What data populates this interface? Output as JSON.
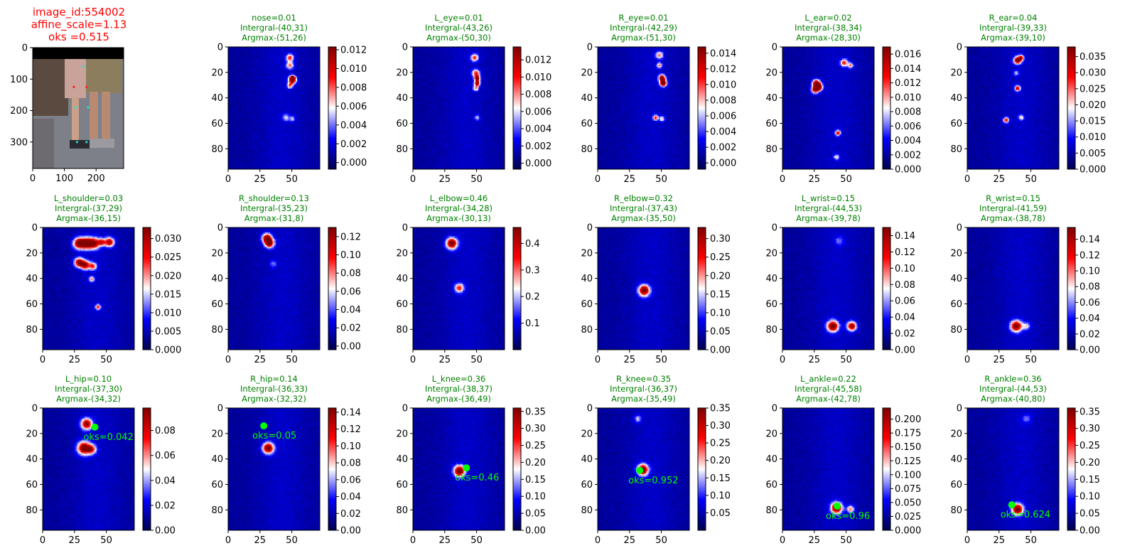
{
  "chart_data": {
    "type": "heatmap",
    "figure": {
      "image_panel": {
        "title": [
          "image_id:554002",
          "affine_scale=1.13",
          "oks =0.515"
        ],
        "title_color": "#ff0000",
        "xlim": [
          0,
          287
        ],
        "ylim": [
          0,
          384
        ],
        "xticks": [
          0,
          100,
          200
        ],
        "yticks": [
          0,
          100,
          200,
          300
        ],
        "keypoints_red": [
          [
            130,
            125
          ],
          [
            170,
            125
          ]
        ],
        "keypoints_cyan": [
          [
            160,
            60
          ],
          [
            135,
            190
          ],
          [
            175,
            190
          ],
          [
            140,
            300
          ],
          [
            170,
            300
          ]
        ]
      },
      "heatmap_xlim": [
        0,
        72
      ],
      "heatmap_ylim": [
        0,
        96
      ],
      "heatmap_xticks": [
        0,
        25,
        50
      ],
      "heatmap_yticks": [
        0,
        20,
        40,
        60,
        80
      ],
      "colormap": "seismic",
      "colors": {
        "title": "#008000",
        "gt_marker": "#00ff00",
        "image_title": "#ff0000"
      },
      "panels": [
        {
          "title": [
            "nose=0.01",
            "Intergral-(40,31)",
            "Argmax-(51,26)"
          ],
          "cbar_ticks": [
            "0.000",
            "0.002",
            "0.004",
            "0.006",
            "0.008",
            "0.010",
            "0.012"
          ],
          "vmin": -0.0007,
          "vmax": 0.0123,
          "blobs": [
            [
              48,
              8,
              2,
              0.6
            ],
            [
              48,
              14,
              2,
              0.5
            ],
            [
              50,
              24,
              1.5,
              0.9
            ],
            [
              50,
              26,
              2,
              0.8
            ],
            [
              48,
              30,
              1.5,
              0.5
            ],
            [
              45,
              55,
              2,
              0.3
            ],
            [
              50,
              56,
              1.5,
              0.3
            ]
          ]
        },
        {
          "title": [
            "L_eye=0.01",
            "Intergral-(43,26)",
            "Argmax-(50,30)"
          ],
          "cbar_ticks": [
            "0.000",
            "0.002",
            "0.004",
            "0.006",
            "0.008",
            "0.010",
            "0.012"
          ],
          "vmin": -0.0007,
          "vmax": 0.0135,
          "blobs": [
            [
              48,
              8,
              2,
              0.6
            ],
            [
              49,
              20,
              2,
              0.6
            ],
            [
              50,
              24,
              1.5,
              0.95
            ],
            [
              50,
              28,
              1.5,
              0.9
            ],
            [
              49,
              32,
              1.5,
              0.5
            ],
            [
              50,
              55,
              1.5,
              0.3
            ]
          ]
        },
        {
          "title": [
            "R_eye=0.01",
            "Intergral-(42,29)",
            "Argmax-(51,30)"
          ],
          "cbar_ticks": [
            "0.000",
            "0.002",
            "0.004",
            "0.006",
            "0.008",
            "0.010",
            "0.012",
            "0.014"
          ],
          "vmin": -0.0008,
          "vmax": 0.0148,
          "blobs": [
            [
              48,
              6,
              2,
              0.5
            ],
            [
              48,
              14,
              1.5,
              0.5
            ],
            [
              50,
              24,
              1.8,
              0.95
            ],
            [
              51,
              28,
              1.8,
              0.95
            ],
            [
              45,
              55,
              1.5,
              0.6
            ],
            [
              50,
              56,
              1.5,
              0.4
            ]
          ]
        },
        {
          "title": [
            "L_ear=0.02",
            "Intergral-(38,34)",
            "Argmax-(28,30)"
          ],
          "cbar_ticks": [
            "0.000",
            "0.002",
            "0.004",
            "0.006",
            "0.008",
            "0.010",
            "0.012",
            "0.014",
            "0.016"
          ],
          "vmin": 0,
          "vmax": 0.017,
          "blobs": [
            [
              26,
              28,
              2,
              0.9
            ],
            [
              28,
              31,
              2,
              0.95
            ],
            [
              25,
              33,
              2,
              0.8
            ],
            [
              48,
              12,
              2,
              0.6
            ],
            [
              53,
              14,
              1.5,
              0.5
            ],
            [
              43,
              67,
              1.5,
              0.7
            ],
            [
              42,
              86,
              1.5,
              0.4
            ]
          ]
        },
        {
          "title": [
            "R_ear=0.04",
            "Intergral-(39,33)",
            "Argmax-(39,10)"
          ],
          "cbar_ticks": [
            "0.000",
            "0.005",
            "0.010",
            "0.015",
            "0.020",
            "0.025",
            "0.030",
            "0.035"
          ],
          "vmin": 0,
          "vmax": 0.038,
          "blobs": [
            [
              39,
              10,
              2,
              0.95
            ],
            [
              42,
              8,
              1.5,
              0.6
            ],
            [
              39,
              32,
              1.5,
              0.8
            ],
            [
              30,
              57,
              1.5,
              0.7
            ],
            [
              42,
              55,
              1.5,
              0.4
            ],
            [
              38,
              20,
              1.5,
              0.3
            ]
          ]
        },
        {
          "title": [
            "L_shoulder=0.03",
            "Intergral-(37,29)",
            "Argmax-(36,15)"
          ],
          "cbar_ticks": [
            "0.000",
            "0.005",
            "0.010",
            "0.015",
            "0.020",
            "0.025",
            "0.030"
          ],
          "vmin": 0,
          "vmax": 0.033,
          "blobs": [
            [
              28,
              12,
              3,
              0.9
            ],
            [
              34,
              12,
              3,
              0.95
            ],
            [
              40,
              12,
              3,
              0.8
            ],
            [
              52,
              11,
              2.5,
              0.8
            ],
            [
              46,
              11,
              2,
              0.6
            ],
            [
              28,
              27,
              2.5,
              0.85
            ],
            [
              33,
              29,
              2.5,
              0.8
            ],
            [
              39,
              30,
              2,
              0.6
            ],
            [
              38,
              40,
              1.5,
              0.5
            ],
            [
              43,
              62,
              1.5,
              0.6
            ]
          ]
        },
        {
          "title": [
            "R_shoulder=0.13",
            "Intergral-(35,23)",
            "Argmax-(31,8)"
          ],
          "cbar_ticks": [
            "0.00",
            "0.02",
            "0.04",
            "0.06",
            "0.08",
            "0.10",
            "0.12"
          ],
          "vmin": -0.004,
          "vmax": 0.13,
          "blobs": [
            [
              30,
              8,
              2.5,
              0.95
            ],
            [
              32,
              12,
              2.5,
              0.85
            ],
            [
              35,
              28,
              2,
              0.2
            ]
          ]
        },
        {
          "title": [
            "L_elbow=0.46",
            "Intergral-(34,28)",
            "Argmax-(30,13)"
          ],
          "cbar_ticks": [
            "0.1",
            "0.2",
            "0.3",
            "0.4"
          ],
          "vmin": 0,
          "vmax": 0.46,
          "blobs": [
            [
              30,
              12,
              3,
              0.95
            ],
            [
              36,
              47,
              2.5,
              0.6
            ]
          ]
        },
        {
          "title": [
            "R_elbow=0.32",
            "Intergral-(37,43)",
            "Argmax-(35,50)"
          ],
          "cbar_ticks": [
            "0.00",
            "0.05",
            "0.10",
            "0.15",
            "0.20",
            "0.25",
            "0.30"
          ],
          "vmin": 0,
          "vmax": 0.33,
          "blobs": [
            [
              36,
              49,
              3,
              0.95
            ]
          ]
        },
        {
          "title": [
            "L_wrist=0.15",
            "Intergral-(44,53)",
            "Argmax-(39,78)"
          ],
          "cbar_ticks": [
            "0.00",
            "0.02",
            "0.04",
            "0.06",
            "0.08",
            "0.10",
            "0.12",
            "0.14"
          ],
          "vmin": 0,
          "vmax": 0.15,
          "blobs": [
            [
              39,
              77,
              3,
              0.95
            ],
            [
              54,
              77,
              2.5,
              0.85
            ],
            [
              44,
              10,
              2.5,
              0.2
            ]
          ]
        },
        {
          "title": [
            "R_wrist=0.15",
            "Intergral-(41,59)",
            "Argmax-(38,78)"
          ],
          "cbar_ticks": [
            "0.00",
            "0.02",
            "0.04",
            "0.06",
            "0.08",
            "0.10",
            "0.12",
            "0.14"
          ],
          "vmin": 0,
          "vmax": 0.155,
          "blobs": [
            [
              38,
              77,
              3,
              0.95
            ],
            [
              46,
              77,
              2,
              0.35
            ]
          ]
        },
        {
          "title": [
            "L_hip=0.10",
            "Intergral-(37,30)",
            "Argmax-(34,32)"
          ],
          "cbar_ticks": [
            "0.00",
            "0.02",
            "0.04",
            "0.06",
            "0.08"
          ],
          "vmin": 0,
          "vmax": 0.098,
          "blobs": [
            [
              34,
              12,
              3,
              0.85
            ],
            [
              32,
              31,
              3.5,
              0.95
            ],
            [
              38,
              32,
              2.5,
              0.6
            ]
          ],
          "gt": [
            41,
            15
          ],
          "oks": "oks=0.042"
        },
        {
          "title": [
            "R_hip=0.14",
            "Intergral-(36,33)",
            "Argmax-(32,32)"
          ],
          "cbar_ticks": [
            "0.00",
            "0.02",
            "0.04",
            "0.06",
            "0.08",
            "0.10",
            "0.12",
            "0.14"
          ],
          "vmin": 0,
          "vmax": 0.145,
          "blobs": [
            [
              31,
              31,
              3,
              0.95
            ]
          ],
          "gt": [
            28,
            14
          ],
          "oks": "oks=0.05"
        },
        {
          "title": [
            "L_knee=0.36",
            "Intergral-(38,37)",
            "Argmax-(36,49)"
          ],
          "cbar_ticks": [
            "0.00",
            "0.05",
            "0.10",
            "0.15",
            "0.20",
            "0.25",
            "0.30",
            "0.35"
          ],
          "vmin": 0,
          "vmax": 0.36,
          "blobs": [
            [
              36,
              49,
              3,
              0.95
            ]
          ],
          "gt": [
            42,
            47
          ],
          "oks": "oks=0.46"
        },
        {
          "title": [
            "R_knee=0.35",
            "Intergral-(36,37)",
            "Argmax-(35,49)"
          ],
          "cbar_ticks": [
            "0.05",
            "0.10",
            "0.15",
            "0.20",
            "0.25",
            "0.30",
            "0.35"
          ],
          "vmin": 0,
          "vmax": 0.35,
          "blobs": [
            [
              35,
              48,
              3,
              0.95
            ],
            [
              31,
              8,
              2,
              0.3
            ]
          ],
          "gt": [
            33,
            49
          ],
          "oks": "oks=0.952"
        },
        {
          "title": [
            "L_ankle=0.22",
            "Intergral-(45,58)",
            "Argmax-(42,78)"
          ],
          "cbar_ticks": [
            "0.000",
            "0.025",
            "0.050",
            "0.075",
            "0.100",
            "0.125",
            "0.150",
            "0.175",
            "0.200"
          ],
          "vmin": 0,
          "vmax": 0.22,
          "blobs": [
            [
              42,
              78,
              3,
              0.95
            ],
            [
              53,
              79,
              2,
              0.5
            ]
          ],
          "gt": [
            43,
            77
          ],
          "oks": "oks=0.96"
        },
        {
          "title": [
            "R_ankle=0.36",
            "Intergral-(44,53)",
            "Argmax-(40,80)"
          ],
          "cbar_ticks": [
            "0.00",
            "0.05",
            "0.10",
            "0.15",
            "0.20",
            "0.25",
            "0.30",
            "0.35"
          ],
          "vmin": 0,
          "vmax": 0.36,
          "blobs": [
            [
              39,
              79,
              3,
              0.95
            ],
            [
              46,
              8,
              2.5,
              0.2
            ]
          ],
          "gt": [
            35,
            76
          ],
          "oks": "oks=0.624"
        }
      ]
    }
  }
}
